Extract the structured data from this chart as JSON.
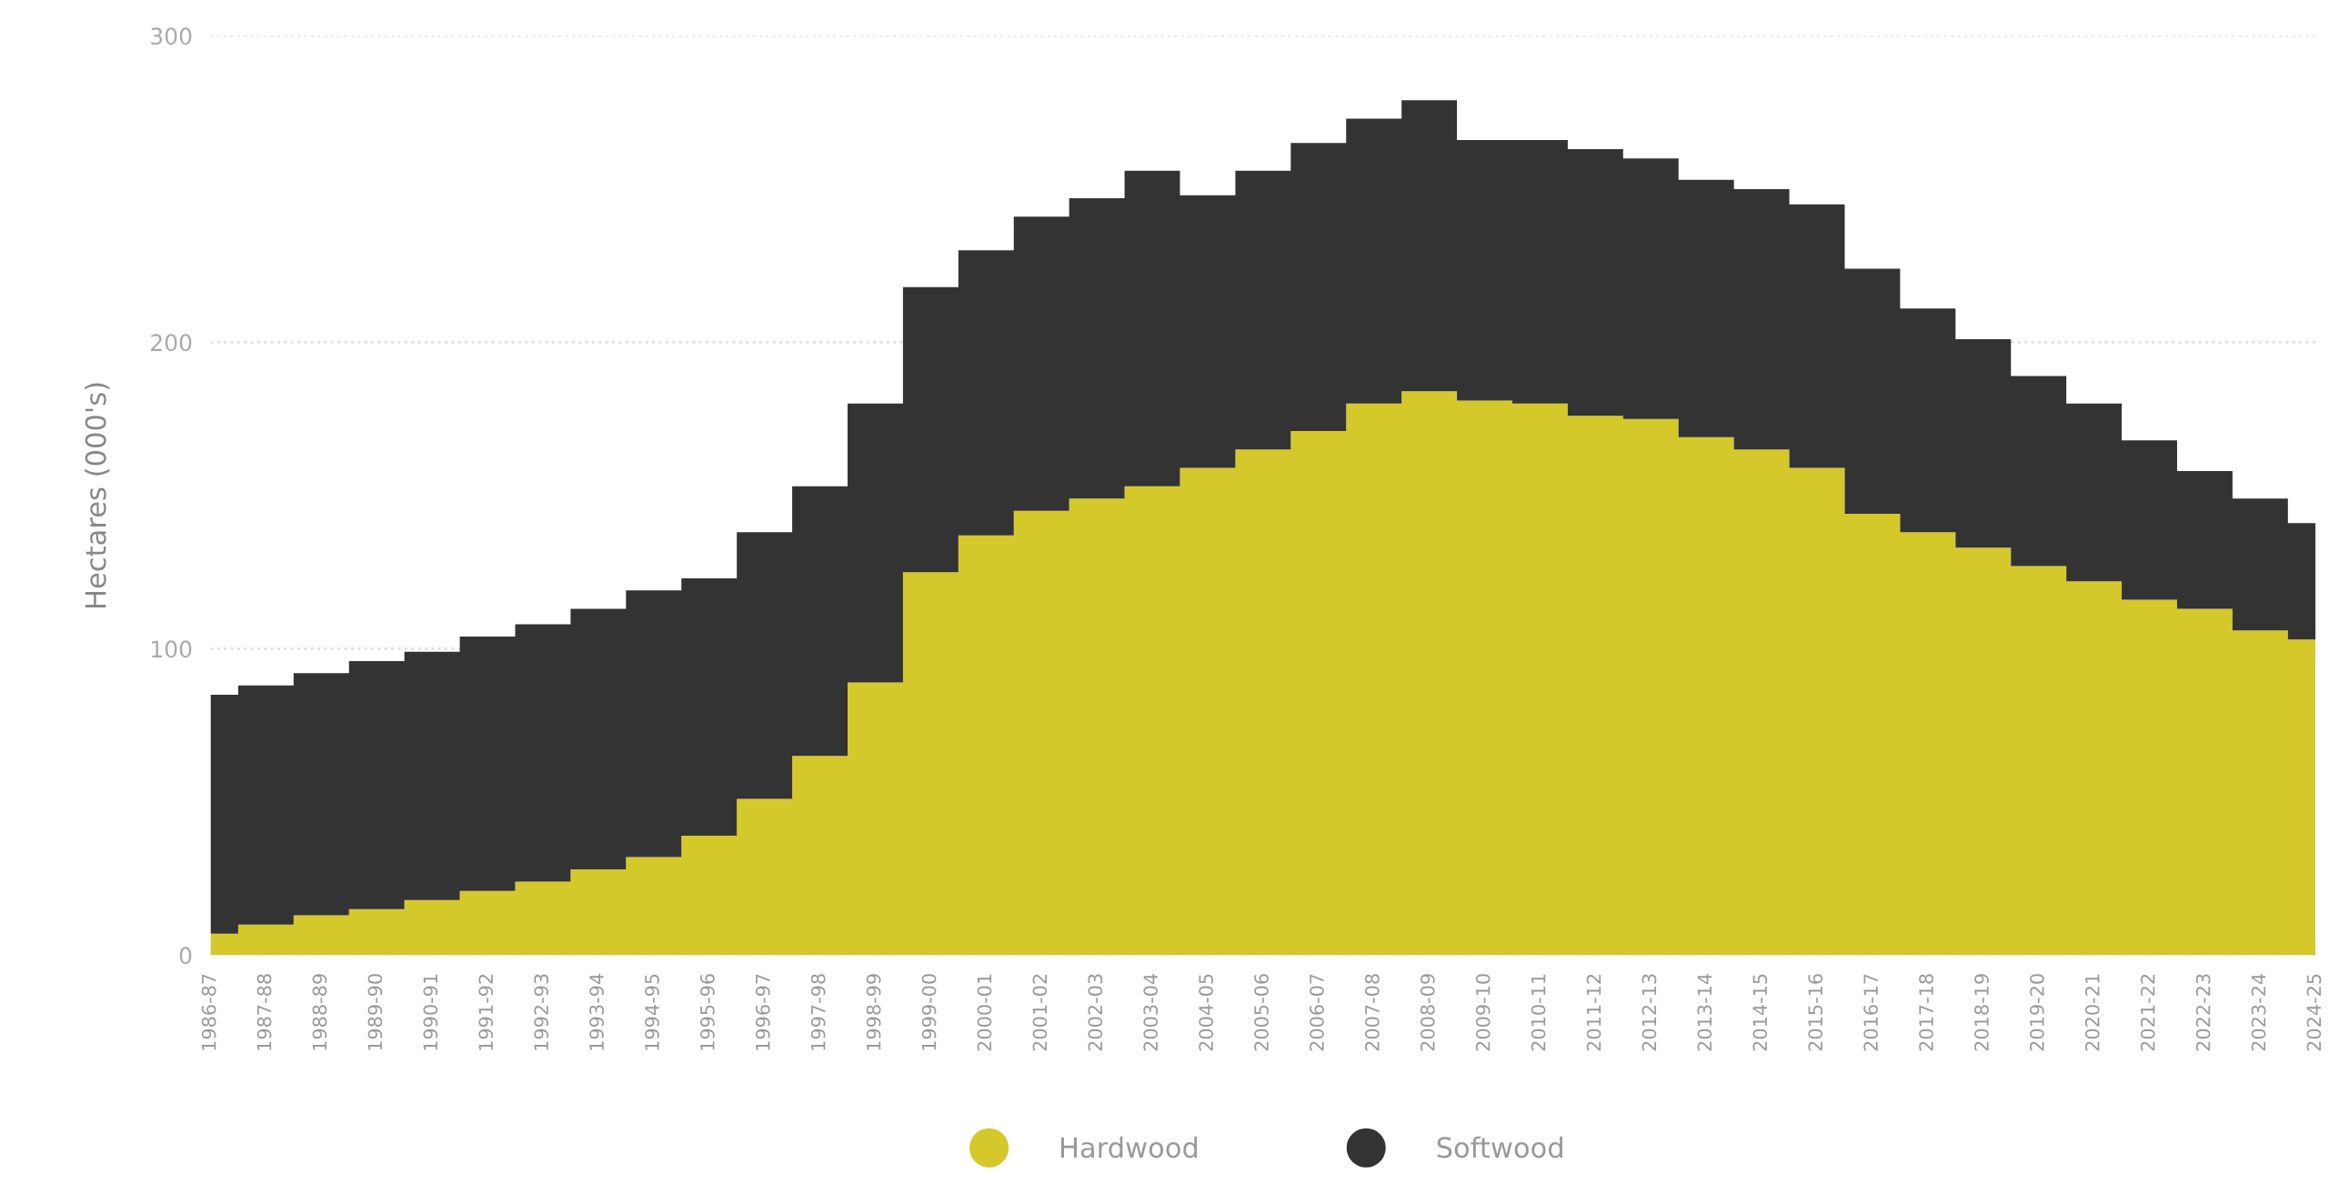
{
  "chart_data": {
    "type": "area",
    "stacked": true,
    "ylabel": "Hectares (000's)",
    "categories": [
      "1986-87",
      "1987-88",
      "1988-89",
      "1989-90",
      "1990-91",
      "1991-92",
      "1992-93",
      "1993-94",
      "1994-95",
      "1995-96",
      "1996-97",
      "1997-98",
      "1998-99",
      "1999-00",
      "2000-01",
      "2001-02",
      "2002-03",
      "2003-04",
      "2004-05",
      "2005-06",
      "2006-07",
      "2007-08",
      "2008-09",
      "2009-10",
      "2010-11",
      "2011-12",
      "2012-13",
      "2013-14",
      "2014-15",
      "2015-16",
      "2016-17",
      "2017-18",
      "2018-19",
      "2019-20",
      "2020-21",
      "2021-22",
      "2022-23",
      "2023-24",
      "2024-25"
    ],
    "series": [
      {
        "name": "Hardwood",
        "color": "#d4c82a",
        "values": [
          7,
          10,
          13,
          15,
          18,
          21,
          24,
          28,
          32,
          39,
          51,
          65,
          89,
          125,
          137,
          145,
          149,
          153,
          159,
          165,
          171,
          180,
          184,
          181,
          180,
          176,
          175,
          169,
          165,
          159,
          144,
          138,
          133,
          127,
          122,
          116,
          113,
          106,
          103
        ]
      },
      {
        "name": "Softwood",
        "color": "#333333",
        "values": [
          78,
          78,
          79,
          81,
          81,
          83,
          84,
          85,
          87,
          84,
          87,
          88,
          91,
          93,
          93,
          96,
          98,
          103,
          89,
          91,
          94,
          93,
          95,
          85,
          86,
          87,
          85,
          84,
          85,
          86,
          80,
          73,
          68,
          62,
          58,
          52,
          45,
          43,
          38
        ]
      }
    ],
    "ylim": [
      0,
      300
    ],
    "yticks": [
      0,
      100,
      200,
      300
    ],
    "grid": "y",
    "legend": "bottom"
  }
}
